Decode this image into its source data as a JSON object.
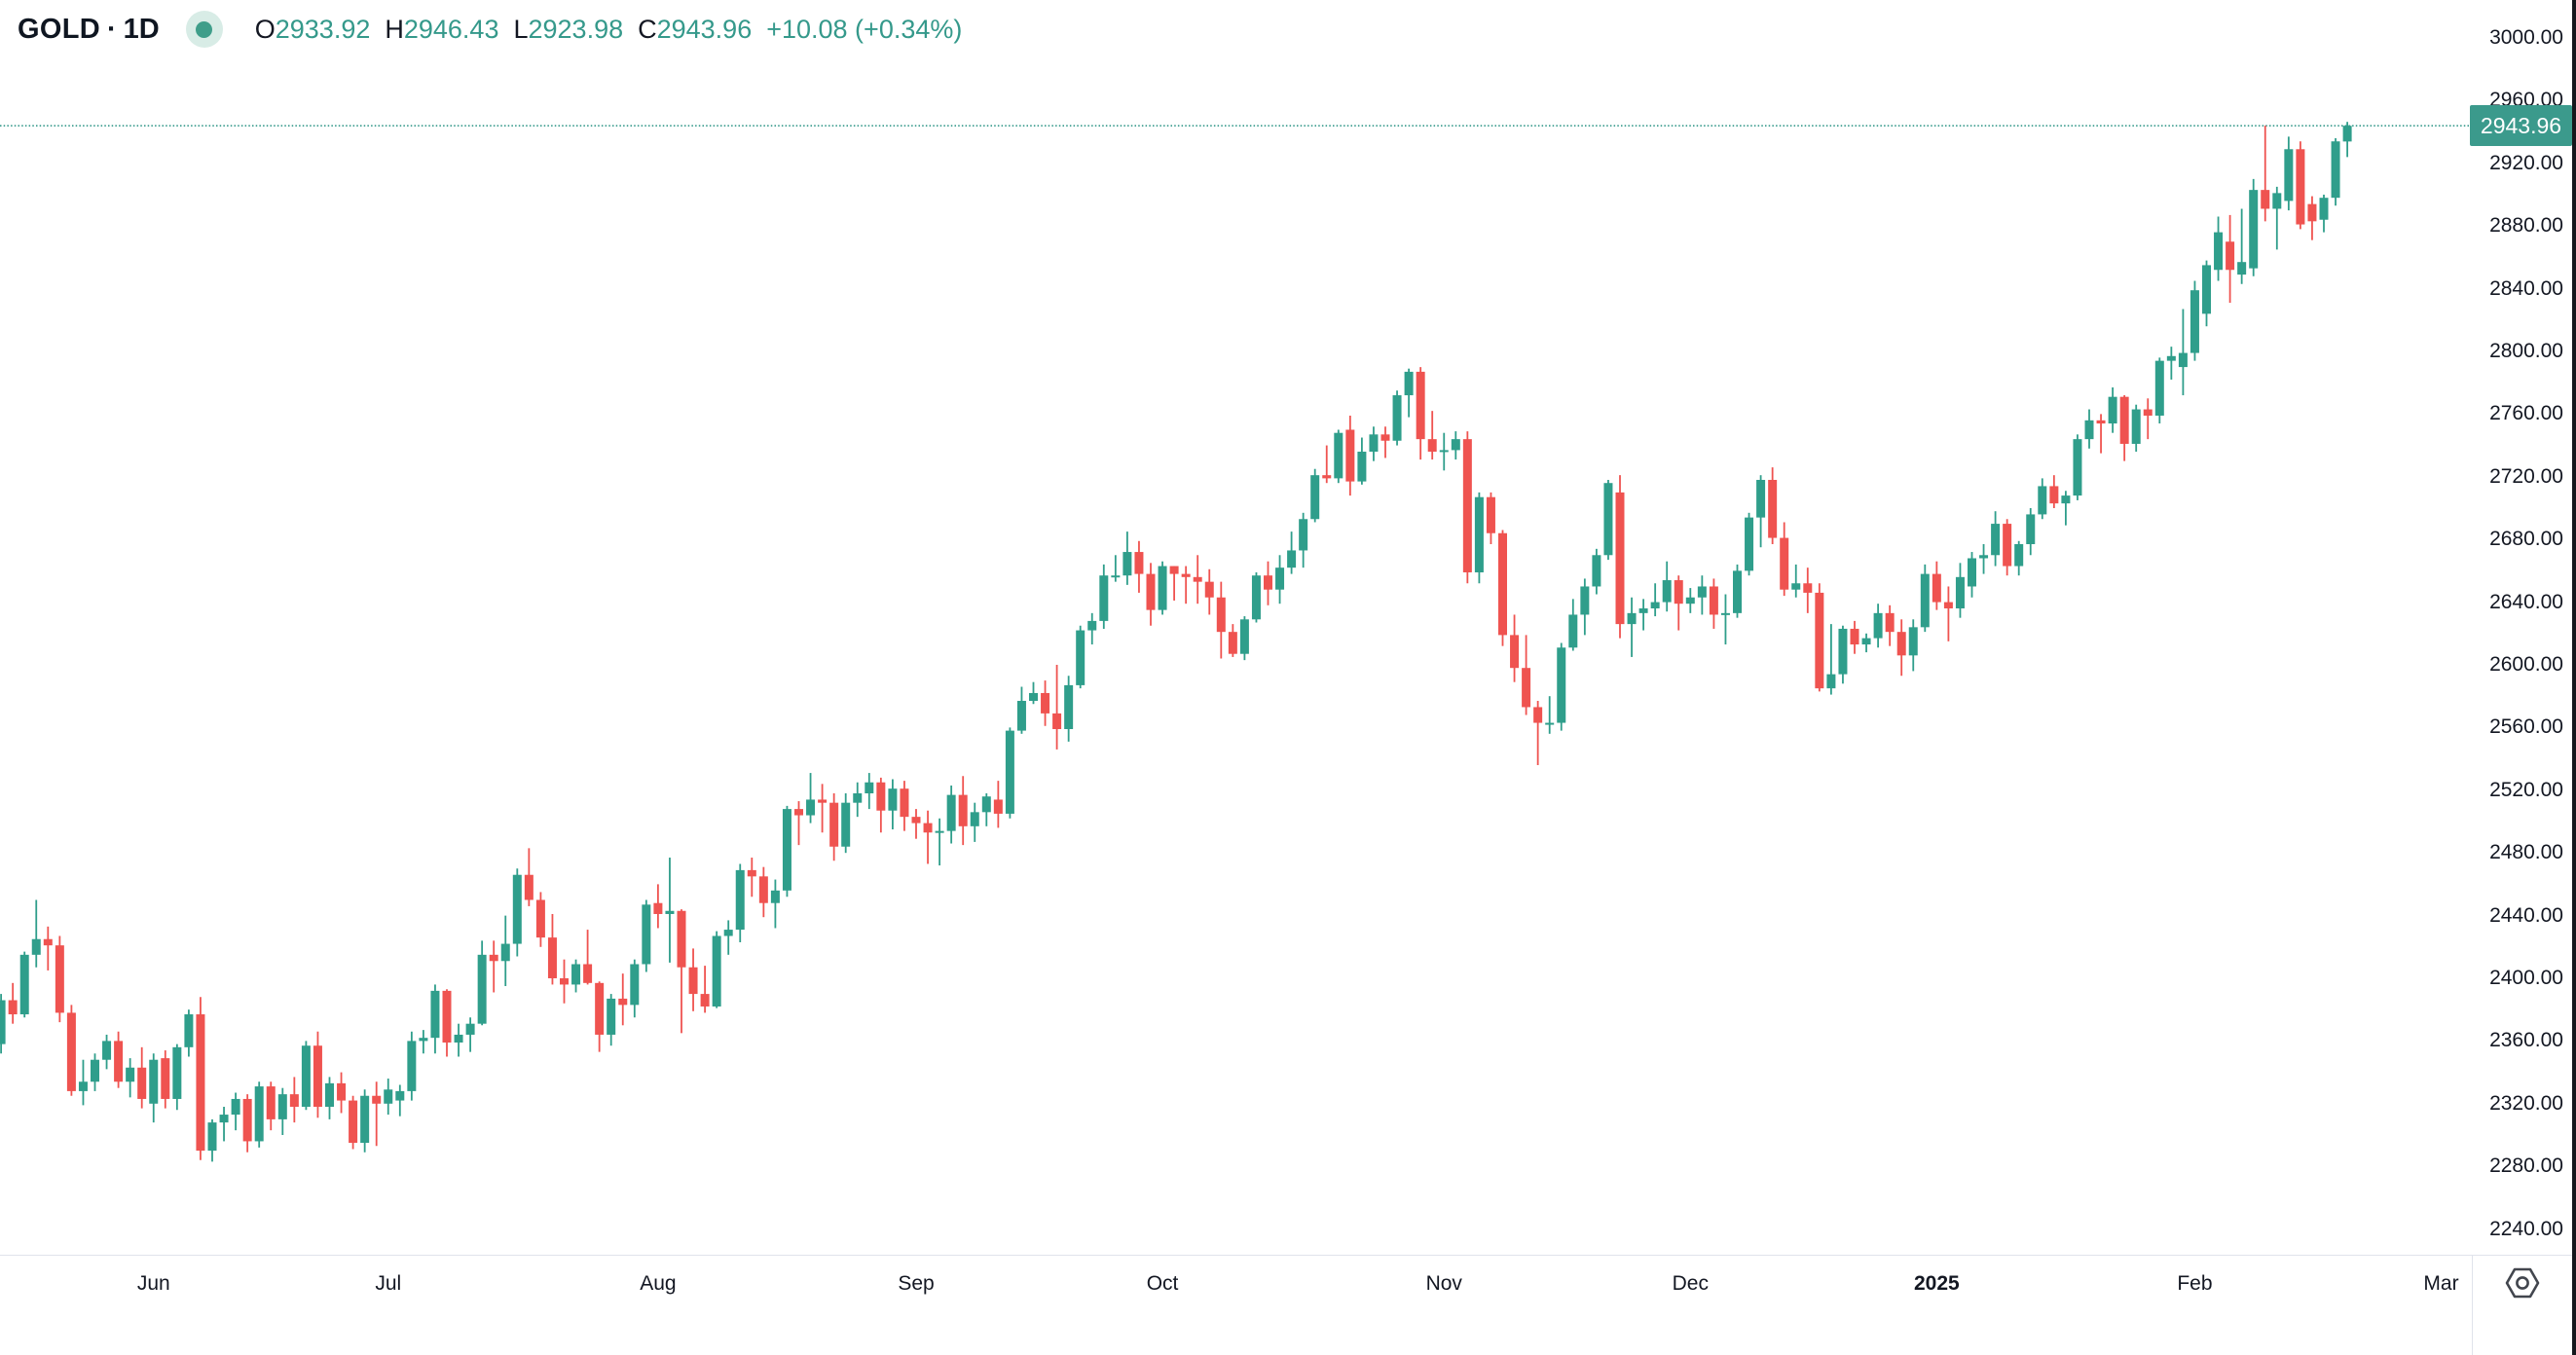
{
  "header": {
    "symbol": "GOLD",
    "separator": "·",
    "interval": "1D",
    "legend": [
      {
        "label": "O",
        "value": "2933.92"
      },
      {
        "label": "H",
        "value": "2946.43"
      },
      {
        "label": "L",
        "value": "2923.98"
      },
      {
        "label": "C",
        "value": "2943.96"
      }
    ],
    "change": "+10.08 (+0.34%)"
  },
  "price_scale": {
    "last_price_label": "2943.96"
  },
  "icons": {
    "market_status": "market-status-dot",
    "settings": "gear"
  },
  "colors": {
    "up": "#2f9e8b",
    "down": "#ef5350",
    "accent_green": "#35998b",
    "badge_bg": "#3b9a8c",
    "badge_text": "#ffffff",
    "text": "#131722",
    "separator": "#e0e3eb",
    "edge_strip": "#15171c",
    "dot_halo": "#d8ece6",
    "dot_core": "#3f9e8a"
  },
  "chart_data": {
    "type": "candlestick",
    "symbol": "GOLD",
    "interval": "1D",
    "up_color": "#2f9e8b",
    "down_color": "#ef5350",
    "grid": "off",
    "price_line": {
      "value": 2943.96,
      "style": "dotted",
      "color": "#35998b"
    },
    "y_axis": {
      "visible_min": 2223.6,
      "visible_max": 3024.2,
      "tick_step": 40,
      "tick_labels": [
        "3000.00",
        "2960.00",
        "2920.00",
        "2880.00",
        "2840.00",
        "2800.00",
        "2760.00",
        "2720.00",
        "2680.00",
        "2640.00",
        "2600.00",
        "2560.00",
        "2520.00",
        "2480.00",
        "2440.00",
        "2400.00",
        "2360.00",
        "2320.00",
        "2280.00",
        "2240.00"
      ]
    },
    "x_axis": {
      "n_candles": 203,
      "ticks": [
        {
          "label": "Jun",
          "index": 15
        },
        {
          "label": "Jul",
          "index": 35
        },
        {
          "label": "Aug",
          "index": 58
        },
        {
          "label": "Sep",
          "index": 80
        },
        {
          "label": "Oct",
          "index": 101
        },
        {
          "label": "Nov",
          "index": 125
        },
        {
          "label": "Dec",
          "index": 146
        },
        {
          "label": "2025",
          "index": 167,
          "emphasis": true
        },
        {
          "label": "Feb",
          "index": 189
        },
        {
          "label": "Mar",
          "index": 210
        }
      ]
    },
    "candles": [
      [
        2360,
        2365,
        2332,
        2336
      ],
      [
        2336,
        2359,
        2334,
        2358
      ],
      [
        2358,
        2390,
        2352,
        2386
      ],
      [
        2386,
        2397,
        2371,
        2377
      ],
      [
        2377,
        2417,
        2375,
        2415
      ],
      [
        2415,
        2450,
        2407,
        2425
      ],
      [
        2425,
        2433,
        2405,
        2421
      ],
      [
        2421,
        2427,
        2372,
        2378
      ],
      [
        2378,
        2383,
        2325,
        2328
      ],
      [
        2328,
        2348,
        2319,
        2334
      ],
      [
        2334,
        2352,
        2328,
        2348
      ],
      [
        2348,
        2364,
        2342,
        2360
      ],
      [
        2360,
        2366,
        2330,
        2334
      ],
      [
        2334,
        2349,
        2324,
        2343
      ],
      [
        2343,
        2356,
        2317,
        2323
      ],
      [
        2320,
        2352,
        2308,
        2348
      ],
      [
        2349,
        2354,
        2317,
        2323
      ],
      [
        2323,
        2358,
        2316,
        2356
      ],
      [
        2356,
        2380,
        2350,
        2377
      ],
      [
        2377,
        2388,
        2284,
        2290
      ],
      [
        2290,
        2310,
        2283,
        2308
      ],
      [
        2308,
        2318,
        2296,
        2313
      ],
      [
        2313,
        2327,
        2303,
        2323
      ],
      [
        2323,
        2326,
        2289,
        2296
      ],
      [
        2296,
        2334,
        2292,
        2331
      ],
      [
        2331,
        2334,
        2303,
        2310
      ],
      [
        2310,
        2330,
        2300,
        2326
      ],
      [
        2326,
        2337,
        2308,
        2318
      ],
      [
        2318,
        2360,
        2316,
        2357
      ],
      [
        2357,
        2366,
        2311,
        2318
      ],
      [
        2318,
        2337,
        2310,
        2333
      ],
      [
        2333,
        2340,
        2314,
        2322
      ],
      [
        2322,
        2325,
        2291,
        2295
      ],
      [
        2295,
        2329,
        2289,
        2325
      ],
      [
        2325,
        2334,
        2293,
        2320
      ],
      [
        2320,
        2336,
        2313,
        2329
      ],
      [
        2322,
        2332,
        2312,
        2328
      ],
      [
        2328,
        2366,
        2322,
        2360
      ],
      [
        2360,
        2367,
        2352,
        2362
      ],
      [
        2362,
        2396,
        2352,
        2392
      ],
      [
        2392,
        2393,
        2350,
        2359
      ],
      [
        2359,
        2371,
        2350,
        2364
      ],
      [
        2364,
        2375,
        2353,
        2371
      ],
      [
        2371,
        2424,
        2370,
        2415
      ],
      [
        2415,
        2424,
        2391,
        2411
      ],
      [
        2411,
        2440,
        2395,
        2422
      ],
      [
        2422,
        2470,
        2414,
        2466
      ],
      [
        2466,
        2483,
        2446,
        2450
      ],
      [
        2450,
        2455,
        2420,
        2426
      ],
      [
        2426,
        2441,
        2396,
        2400
      ],
      [
        2400,
        2412,
        2384,
        2396
      ],
      [
        2396,
        2412,
        2391,
        2409
      ],
      [
        2409,
        2431,
        2396,
        2397
      ],
      [
        2397,
        2398,
        2353,
        2364
      ],
      [
        2364,
        2390,
        2357,
        2387
      ],
      [
        2387,
        2403,
        2370,
        2383
      ],
      [
        2383,
        2412,
        2375,
        2409
      ],
      [
        2409,
        2450,
        2404,
        2447
      ],
      [
        2448,
        2460,
        2432,
        2441
      ],
      [
        2441,
        2477,
        2410,
        2443
      ],
      [
        2443,
        2444,
        2365,
        2407
      ],
      [
        2407,
        2419,
        2379,
        2390
      ],
      [
        2390,
        2408,
        2378,
        2382
      ],
      [
        2382,
        2430,
        2381,
        2427
      ],
      [
        2427,
        2437,
        2415,
        2431
      ],
      [
        2431,
        2473,
        2423,
        2469
      ],
      [
        2469,
        2477,
        2452,
        2465
      ],
      [
        2465,
        2471,
        2439,
        2448
      ],
      [
        2448,
        2463,
        2432,
        2456
      ],
      [
        2456,
        2510,
        2452,
        2508
      ],
      [
        2508,
        2513,
        2485,
        2504
      ],
      [
        2504,
        2531,
        2499,
        2514
      ],
      [
        2514,
        2524,
        2493,
        2512
      ],
      [
        2512,
        2518,
        2475,
        2484
      ],
      [
        2484,
        2518,
        2480,
        2512
      ],
      [
        2512,
        2525,
        2503,
        2518
      ],
      [
        2518,
        2531,
        2508,
        2525
      ],
      [
        2525,
        2528,
        2493,
        2507
      ],
      [
        2507,
        2527,
        2495,
        2521
      ],
      [
        2521,
        2526,
        2494,
        2503
      ],
      [
        2503,
        2508,
        2489,
        2499
      ],
      [
        2499,
        2507,
        2473,
        2493
      ],
      [
        2493,
        2502,
        2472,
        2494
      ],
      [
        2494,
        2523,
        2486,
        2517
      ],
      [
        2517,
        2529,
        2485,
        2497
      ],
      [
        2497,
        2512,
        2487,
        2506
      ],
      [
        2506,
        2518,
        2497,
        2516
      ],
      [
        2514,
        2526,
        2496,
        2505
      ],
      [
        2505,
        2560,
        2502,
        2558
      ],
      [
        2558,
        2586,
        2556,
        2577
      ],
      [
        2577,
        2589,
        2575,
        2582
      ],
      [
        2582,
        2590,
        2561,
        2569
      ],
      [
        2569,
        2600,
        2546,
        2559
      ],
      [
        2559,
        2593,
        2551,
        2587
      ],
      [
        2587,
        2625,
        2585,
        2622
      ],
      [
        2622,
        2633,
        2613,
        2628
      ],
      [
        2628,
        2664,
        2623,
        2657
      ],
      [
        2657,
        2670,
        2653,
        2657
      ],
      [
        2657,
        2685,
        2651,
        2672
      ],
      [
        2672,
        2679,
        2646,
        2658
      ],
      [
        2658,
        2665,
        2625,
        2635
      ],
      [
        2635,
        2666,
        2632,
        2663
      ],
      [
        2663,
        2663,
        2641,
        2658
      ],
      [
        2658,
        2663,
        2639,
        2656
      ],
      [
        2656,
        2670,
        2639,
        2653
      ],
      [
        2653,
        2661,
        2632,
        2643
      ],
      [
        2643,
        2653,
        2604,
        2621
      ],
      [
        2621,
        2626,
        2605,
        2607
      ],
      [
        2607,
        2631,
        2603,
        2629
      ],
      [
        2629,
        2659,
        2627,
        2657
      ],
      [
        2657,
        2666,
        2638,
        2648
      ],
      [
        2648,
        2670,
        2639,
        2662
      ],
      [
        2662,
        2685,
        2658,
        2673
      ],
      [
        2673,
        2697,
        2662,
        2693
      ],
      [
        2693,
        2725,
        2691,
        2721
      ],
      [
        2721,
        2740,
        2716,
        2719
      ],
      [
        2719,
        2750,
        2716,
        2748
      ],
      [
        2750,
        2759,
        2708,
        2717
      ],
      [
        2717,
        2745,
        2715,
        2736
      ],
      [
        2736,
        2752,
        2730,
        2747
      ],
      [
        2747,
        2752,
        2732,
        2743
      ],
      [
        2743,
        2775,
        2740,
        2772
      ],
      [
        2772,
        2789,
        2758,
        2787
      ],
      [
        2787,
        2790,
        2731,
        2744
      ],
      [
        2744,
        2762,
        2731,
        2736
      ],
      [
        2736,
        2748,
        2724,
        2737
      ],
      [
        2737,
        2749,
        2731,
        2744
      ],
      [
        2744,
        2749,
        2652,
        2659
      ],
      [
        2659,
        2710,
        2652,
        2707
      ],
      [
        2707,
        2710,
        2677,
        2684
      ],
      [
        2684,
        2686,
        2612,
        2619
      ],
      [
        2619,
        2632,
        2589,
        2598
      ],
      [
        2598,
        2619,
        2568,
        2573
      ],
      [
        2573,
        2577,
        2536,
        2563
      ],
      [
        2563,
        2580,
        2556,
        2563
      ],
      [
        2563,
        2614,
        2558,
        2611
      ],
      [
        2611,
        2642,
        2609,
        2632
      ],
      [
        2632,
        2655,
        2619,
        2650
      ],
      [
        2650,
        2674,
        2645,
        2670
      ],
      [
        2670,
        2718,
        2667,
        2716
      ],
      [
        2710,
        2721,
        2617,
        2626
      ],
      [
        2626,
        2643,
        2605,
        2633
      ],
      [
        2633,
        2642,
        2622,
        2636
      ],
      [
        2636,
        2652,
        2631,
        2640
      ],
      [
        2640,
        2666,
        2634,
        2654
      ],
      [
        2654,
        2657,
        2622,
        2639
      ],
      [
        2639,
        2649,
        2633,
        2643
      ],
      [
        2643,
        2657,
        2632,
        2650
      ],
      [
        2650,
        2655,
        2623,
        2632
      ],
      [
        2632,
        2645,
        2613,
        2633
      ],
      [
        2633,
        2664,
        2630,
        2660
      ],
      [
        2660,
        2697,
        2657,
        2694
      ],
      [
        2694,
        2721,
        2675,
        2718
      ],
      [
        2718,
        2726,
        2677,
        2681
      ],
      [
        2681,
        2691,
        2644,
        2648
      ],
      [
        2648,
        2664,
        2643,
        2652
      ],
      [
        2652,
        2662,
        2633,
        2646
      ],
      [
        2646,
        2652,
        2583,
        2585
      ],
      [
        2585,
        2626,
        2581,
        2594
      ],
      [
        2594,
        2625,
        2588,
        2623
      ],
      [
        2623,
        2628,
        2607,
        2613
      ],
      [
        2613,
        2620,
        2608,
        2617
      ],
      [
        2617,
        2639,
        2611,
        2633
      ],
      [
        2633,
        2638,
        2612,
        2621
      ],
      [
        2621,
        2629,
        2593,
        2606
      ],
      [
        2606,
        2629,
        2596,
        2624
      ],
      [
        2624,
        2664,
        2621,
        2658
      ],
      [
        2658,
        2666,
        2635,
        2640
      ],
      [
        2640,
        2650,
        2615,
        2636
      ],
      [
        2636,
        2665,
        2630,
        2656
      ],
      [
        2650,
        2672,
        2643,
        2668
      ],
      [
        2668,
        2677,
        2658,
        2670
      ],
      [
        2670,
        2698,
        2663,
        2690
      ],
      [
        2690,
        2693,
        2657,
        2663
      ],
      [
        2663,
        2679,
        2657,
        2677
      ],
      [
        2677,
        2700,
        2670,
        2696
      ],
      [
        2696,
        2719,
        2693,
        2714
      ],
      [
        2714,
        2721,
        2700,
        2703
      ],
      [
        2703,
        2711,
        2689,
        2708
      ],
      [
        2708,
        2747,
        2705,
        2744
      ],
      [
        2744,
        2763,
        2738,
        2756
      ],
      [
        2756,
        2760,
        2735,
        2754
      ],
      [
        2754,
        2777,
        2748,
        2771
      ],
      [
        2771,
        2772,
        2730,
        2741
      ],
      [
        2741,
        2766,
        2736,
        2763
      ],
      [
        2763,
        2770,
        2744,
        2759
      ],
      [
        2759,
        2796,
        2754,
        2794
      ],
      [
        2794,
        2803,
        2782,
        2797
      ],
      [
        2790,
        2827,
        2772,
        2799
      ],
      [
        2799,
        2845,
        2794,
        2839
      ],
      [
        2824,
        2858,
        2816,
        2855
      ],
      [
        2852,
        2886,
        2845,
        2876
      ],
      [
        2870,
        2887,
        2831,
        2852
      ],
      [
        2849,
        2891,
        2843,
        2857
      ],
      [
        2853,
        2910,
        2848,
        2903
      ],
      [
        2903,
        2944,
        2883,
        2891
      ],
      [
        2891,
        2905,
        2865,
        2901
      ],
      [
        2896,
        2937,
        2890,
        2929
      ],
      [
        2929,
        2934,
        2878,
        2881
      ],
      [
        2894,
        2899,
        2871,
        2883
      ],
      [
        2884,
        2900,
        2876,
        2898
      ],
      [
        2898,
        2936,
        2893,
        2934
      ],
      [
        2933.92,
        2946.43,
        2923.98,
        2943.96
      ]
    ]
  }
}
